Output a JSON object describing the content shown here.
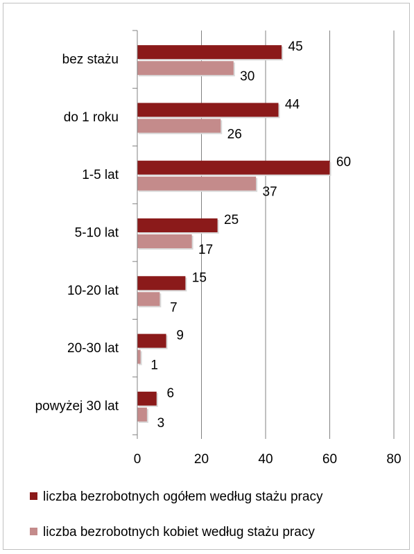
{
  "chart_data": {
    "type": "bar",
    "orientation": "horizontal",
    "categories": [
      "bez stażu",
      "do 1 roku",
      "1-5 lat",
      "5-10 lat",
      "10-20 lat",
      "20-30 lat",
      "powyżej 30 lat"
    ],
    "series": [
      {
        "name": "liczba bezrobotnych ogółem według stażu pracy",
        "color": "#8b1a1a",
        "values": [
          45,
          44,
          60,
          25,
          15,
          9,
          6
        ]
      },
      {
        "name": "liczba bezrobotnych kobiet według stażu pracy",
        "color": "#c48b8b",
        "values": [
          30,
          26,
          37,
          17,
          7,
          1,
          3
        ]
      }
    ],
    "xlim": [
      0,
      80
    ],
    "xticks": [
      0,
      20,
      40,
      60,
      80
    ],
    "grid": true,
    "data_labels": true,
    "legend_position": "bottom"
  }
}
